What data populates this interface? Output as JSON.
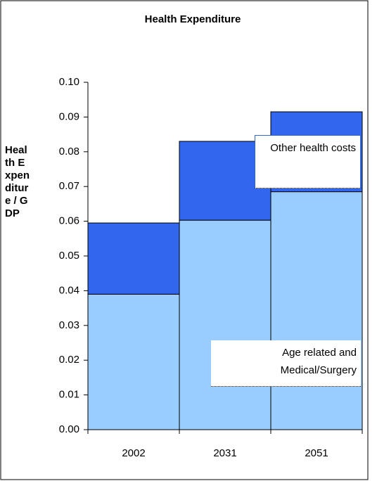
{
  "chart_data": {
    "type": "stacked_bar",
    "title": "Health Expenditure",
    "y_label": "Health Expenditure / GDP",
    "categories": [
      "2002",
      "2031",
      "2051"
    ],
    "series": [
      {
        "name": "Age related and Medical/Surgery",
        "color": "#99ccff",
        "values": [
          0.039,
          0.0603,
          0.0685
        ]
      },
      {
        "name": "Other health costs",
        "color": "#3366ee",
        "values": [
          0.0205,
          0.0227,
          0.023
        ]
      }
    ],
    "ylim": [
      0,
      0.1
    ],
    "yticks": [
      {
        "value": 0,
        "label": "0.00"
      },
      {
        "value": 0.01,
        "label": "0.01"
      },
      {
        "value": 0.02,
        "label": "0.02"
      },
      {
        "value": 0.03,
        "label": "0.03"
      },
      {
        "value": 0.04,
        "label": "0.04"
      },
      {
        "value": 0.05,
        "label": "0.05"
      },
      {
        "value": 0.06,
        "label": "0.06"
      },
      {
        "value": 0.07,
        "label": "0.07"
      },
      {
        "value": 0.08,
        "label": "0.08"
      },
      {
        "value": 0.09,
        "label": "0.09"
      },
      {
        "value": 0.1,
        "label": "0.10"
      }
    ]
  }
}
